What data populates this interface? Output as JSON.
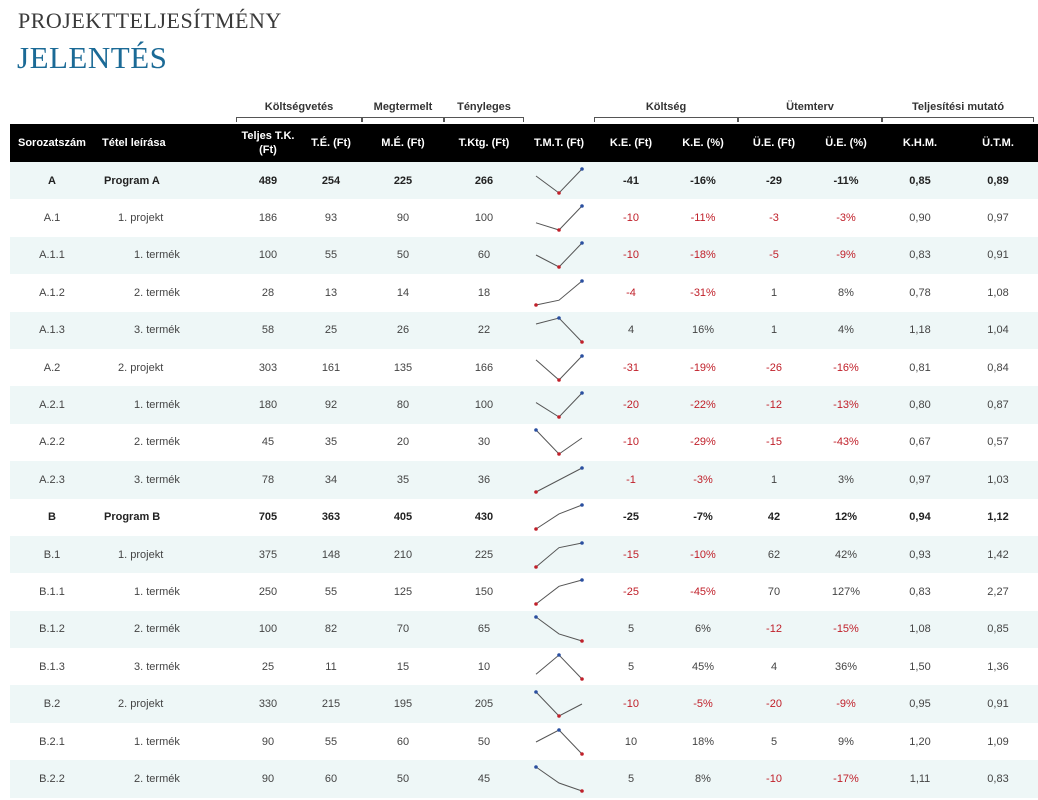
{
  "header": {
    "subtitle": "PROJEKTTELJESÍTMÉNY",
    "title": "JELENTÉS"
  },
  "groups": {
    "budget": "Költségvetés",
    "earned": "Megtermelt",
    "actual": "Tényleges",
    "cost": "Költség",
    "schedule": "Ütemterv",
    "perf": "Teljesítési mutató"
  },
  "columns": [
    "Sorozatszám",
    "Tétel leírása",
    "Teljes T.K. (Ft)",
    "T.É. (Ft)",
    "M.É. (Ft)",
    "T.Ktg. (Ft)",
    "T.M.T. (Ft)",
    "K.E. (Ft)",
    "K.E. (%)",
    "Ü.E. (Ft)",
    "Ü.E. (%)",
    "K.H.M.",
    "Ü.T.M."
  ],
  "colors": {
    "title": "#1b6a96",
    "negative": "#c0202a",
    "spark_line": "#555555",
    "spark_low": "#c0202a",
    "spark_high": "#2a4fa0",
    "row_band": "#eef7f7"
  },
  "rows": [
    {
      "id": "A",
      "desc": "Program A",
      "level": 0,
      "bold": true,
      "tk": "489",
      "te": "254",
      "me": "225",
      "tktg": "266",
      "ke_ft": "-41",
      "ke_pct": "-16%",
      "ue_ft": "-29",
      "ue_pct": "-11%",
      "khm": "0,85",
      "utm": "0,89",
      "spark": [
        254,
        225,
        266
      ]
    },
    {
      "id": "A.1",
      "desc": "1. projekt",
      "level": 1,
      "bold": false,
      "tk": "186",
      "te": "93",
      "me": "90",
      "tktg": "100",
      "ke_ft": "-10",
      "ke_pct": "-11%",
      "ue_ft": "-3",
      "ue_pct": "-3%",
      "khm": "0,90",
      "utm": "0,97",
      "spark": [
        93,
        90,
        100
      ]
    },
    {
      "id": "A.1.1",
      "desc": "1. termék",
      "level": 2,
      "bold": false,
      "tk": "100",
      "te": "55",
      "me": "50",
      "tktg": "60",
      "ke_ft": "-10",
      "ke_pct": "-18%",
      "ue_ft": "-5",
      "ue_pct": "-9%",
      "khm": "0,83",
      "utm": "0,91",
      "spark": [
        55,
        50,
        60
      ]
    },
    {
      "id": "A.1.2",
      "desc": "2. termék",
      "level": 2,
      "bold": false,
      "tk": "28",
      "te": "13",
      "me": "14",
      "tktg": "18",
      "ke_ft": "-4",
      "ke_pct": "-31%",
      "ue_ft": "1",
      "ue_pct": "8%",
      "khm": "0,78",
      "utm": "1,08",
      "spark": [
        13,
        14,
        18
      ]
    },
    {
      "id": "A.1.3",
      "desc": "3. termék",
      "level": 2,
      "bold": false,
      "tk": "58",
      "te": "25",
      "me": "26",
      "tktg": "22",
      "ke_ft": "4",
      "ke_pct": "16%",
      "ue_ft": "1",
      "ue_pct": "4%",
      "khm": "1,18",
      "utm": "1,04",
      "spark": [
        25,
        26,
        22
      ]
    },
    {
      "id": "A.2",
      "desc": "2. projekt",
      "level": 1,
      "bold": false,
      "tk": "303",
      "te": "161",
      "me": "135",
      "tktg": "166",
      "ke_ft": "-31",
      "ke_pct": "-19%",
      "ue_ft": "-26",
      "ue_pct": "-16%",
      "khm": "0,81",
      "utm": "0,84",
      "spark": [
        161,
        135,
        166
      ]
    },
    {
      "id": "A.2.1",
      "desc": "1. termék",
      "level": 2,
      "bold": false,
      "tk": "180",
      "te": "92",
      "me": "80",
      "tktg": "100",
      "ke_ft": "-20",
      "ke_pct": "-22%",
      "ue_ft": "-12",
      "ue_pct": "-13%",
      "khm": "0,80",
      "utm": "0,87",
      "spark": [
        92,
        80,
        100
      ]
    },
    {
      "id": "A.2.2",
      "desc": "2. termék",
      "level": 2,
      "bold": false,
      "tk": "45",
      "te": "35",
      "me": "20",
      "tktg": "30",
      "ke_ft": "-10",
      "ke_pct": "-29%",
      "ue_ft": "-15",
      "ue_pct": "-43%",
      "khm": "0,67",
      "utm": "0,57",
      "spark": [
        35,
        20,
        30
      ]
    },
    {
      "id": "A.2.3",
      "desc": "3. termék",
      "level": 2,
      "bold": false,
      "tk": "78",
      "te": "34",
      "me": "35",
      "tktg": "36",
      "ke_ft": "-1",
      "ke_pct": "-3%",
      "ue_ft": "1",
      "ue_pct": "3%",
      "khm": "0,97",
      "utm": "1,03",
      "spark": [
        34,
        35,
        36
      ]
    },
    {
      "id": "B",
      "desc": "Program B",
      "level": 0,
      "bold": true,
      "tk": "705",
      "te": "363",
      "me": "405",
      "tktg": "430",
      "ke_ft": "-25",
      "ke_pct": "-7%",
      "ue_ft": "42",
      "ue_pct": "12%",
      "khm": "0,94",
      "utm": "1,12",
      "spark": [
        363,
        405,
        430
      ]
    },
    {
      "id": "B.1",
      "desc": "1. projekt",
      "level": 1,
      "bold": false,
      "tk": "375",
      "te": "148",
      "me": "210",
      "tktg": "225",
      "ke_ft": "-15",
      "ke_pct": "-10%",
      "ue_ft": "62",
      "ue_pct": "42%",
      "khm": "0,93",
      "utm": "1,42",
      "spark": [
        148,
        210,
        225
      ]
    },
    {
      "id": "B.1.1",
      "desc": "1. termék",
      "level": 2,
      "bold": false,
      "tk": "250",
      "te": "55",
      "me": "125",
      "tktg": "150",
      "ke_ft": "-25",
      "ke_pct": "-45%",
      "ue_ft": "70",
      "ue_pct": "127%",
      "khm": "0,83",
      "utm": "2,27",
      "spark": [
        55,
        125,
        150
      ]
    },
    {
      "id": "B.1.2",
      "desc": "2. termék",
      "level": 2,
      "bold": false,
      "tk": "100",
      "te": "82",
      "me": "70",
      "tktg": "65",
      "ke_ft": "5",
      "ke_pct": "6%",
      "ue_ft": "-12",
      "ue_pct": "-15%",
      "khm": "1,08",
      "utm": "0,85",
      "spark": [
        82,
        70,
        65
      ]
    },
    {
      "id": "B.1.3",
      "desc": "3. termék",
      "level": 2,
      "bold": false,
      "tk": "25",
      "te": "11",
      "me": "15",
      "tktg": "10",
      "ke_ft": "5",
      "ke_pct": "45%",
      "ue_ft": "4",
      "ue_pct": "36%",
      "khm": "1,50",
      "utm": "1,36",
      "spark": [
        11,
        15,
        10
      ]
    },
    {
      "id": "B.2",
      "desc": "2. projekt",
      "level": 1,
      "bold": false,
      "tk": "330",
      "te": "215",
      "me": "195",
      "tktg": "205",
      "ke_ft": "-10",
      "ke_pct": "-5%",
      "ue_ft": "-20",
      "ue_pct": "-9%",
      "khm": "0,95",
      "utm": "0,91",
      "spark": [
        215,
        195,
        205
      ]
    },
    {
      "id": "B.2.1",
      "desc": "1. termék",
      "level": 2,
      "bold": false,
      "tk": "90",
      "te": "55",
      "me": "60",
      "tktg": "50",
      "ke_ft": "10",
      "ke_pct": "18%",
      "ue_ft": "5",
      "ue_pct": "9%",
      "khm": "1,20",
      "utm": "1,09",
      "spark": [
        55,
        60,
        50
      ]
    },
    {
      "id": "B.2.2",
      "desc": "2. termék",
      "level": 2,
      "bold": false,
      "tk": "90",
      "te": "60",
      "me": "50",
      "tktg": "45",
      "ke_ft": "5",
      "ke_pct": "8%",
      "ue_ft": "-10",
      "ue_pct": "-17%",
      "khm": "1,11",
      "utm": "0,83",
      "spark": [
        60,
        50,
        45
      ]
    }
  ]
}
